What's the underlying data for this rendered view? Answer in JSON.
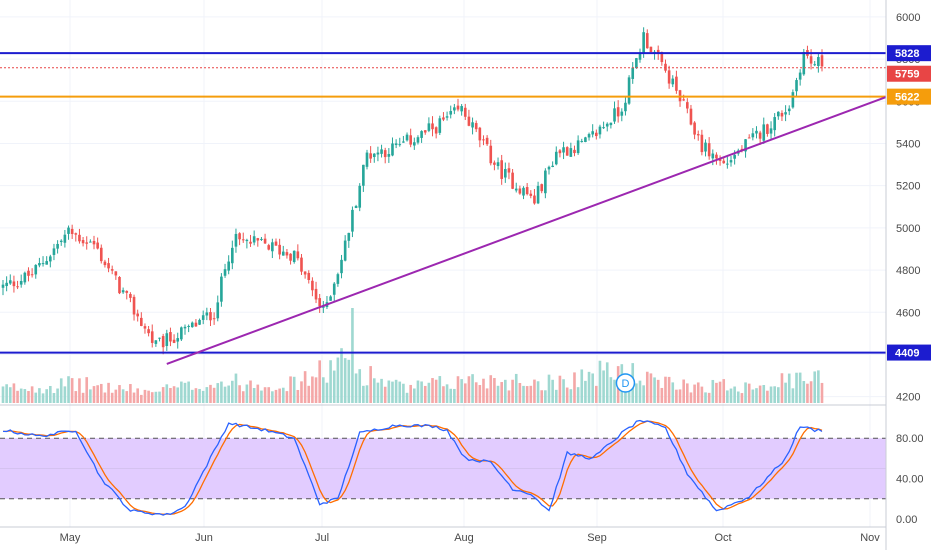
{
  "chart_data": {
    "type": "candlestick",
    "x_months": [
      "May",
      "Jun",
      "Jul",
      "Aug",
      "Sep",
      "Oct",
      "Nov"
    ],
    "price_axis": {
      "ticks": [
        4200,
        4400,
        4600,
        4800,
        5000,
        5200,
        5400,
        5600,
        5800,
        6000
      ],
      "range": [
        4170,
        6080
      ]
    },
    "oscillator_axis": {
      "ticks": [
        "0.00",
        "40.00",
        "80.00"
      ],
      "range": [
        -8,
        108
      ],
      "band": [
        20,
        80
      ]
    },
    "horizontal_levels": [
      {
        "label": "5828",
        "value": 5828,
        "color": "#1c1ccf"
      },
      {
        "label": "5759",
        "value": 5759,
        "color": "#e84545"
      },
      {
        "label": "5622",
        "value": 5622,
        "color": "#f59d0c"
      },
      {
        "label": "4409",
        "value": 4409,
        "color": "#1c1ccf"
      }
    ],
    "trendline": {
      "color": "#9c27b0",
      "from": {
        "bar": 45,
        "price": 4355
      },
      "to": {
        "bar": 230,
        "price": 5620
      }
    },
    "dividend_marker": {
      "label": "D",
      "bar": 171
    },
    "colors": {
      "up": "#26a69a",
      "down": "#ef5350",
      "up_volume": "#9fd8d1",
      "down_volume": "#f4a7a7",
      "k_line": "#2962ff",
      "d_line": "#ff6d00",
      "band_fill": "#e2ccff"
    },
    "price_waypoints": [
      [
        0,
        4720
      ],
      [
        8,
        4780
      ],
      [
        18,
        4980
      ],
      [
        25,
        4920
      ],
      [
        33,
        4690
      ],
      [
        42,
        4440
      ],
      [
        50,
        4510
      ],
      [
        58,
        4600
      ],
      [
        63,
        4940
      ],
      [
        72,
        4920
      ],
      [
        80,
        4870
      ],
      [
        88,
        4600
      ],
      [
        93,
        4850
      ],
      [
        100,
        5350
      ],
      [
        108,
        5380
      ],
      [
        118,
        5470
      ],
      [
        126,
        5560
      ],
      [
        136,
        5280
      ],
      [
        146,
        5130
      ],
      [
        152,
        5360
      ],
      [
        160,
        5400
      ],
      [
        170,
        5570
      ],
      [
        176,
        5910
      ],
      [
        184,
        5680
      ],
      [
        192,
        5390
      ],
      [
        198,
        5300
      ],
      [
        210,
        5480
      ],
      [
        216,
        5580
      ],
      [
        220,
        5830
      ],
      [
        222,
        5780
      ]
    ],
    "volume_waypoints": [
      [
        0,
        0.15
      ],
      [
        20,
        0.2
      ],
      [
        40,
        0.12
      ],
      [
        60,
        0.22
      ],
      [
        80,
        0.2
      ],
      [
        95,
        0.45
      ],
      [
        96,
        1.0
      ],
      [
        97,
        0.35
      ],
      [
        110,
        0.15
      ],
      [
        130,
        0.25
      ],
      [
        150,
        0.22
      ],
      [
        170,
        0.35
      ],
      [
        180,
        0.2
      ],
      [
        200,
        0.18
      ],
      [
        222,
        0.25
      ]
    ],
    "k_waypoints": [
      [
        0,
        88
      ],
      [
        10,
        82
      ],
      [
        20,
        88
      ],
      [
        27,
        40
      ],
      [
        35,
        8
      ],
      [
        45,
        4
      ],
      [
        50,
        12
      ],
      [
        62,
        95
      ],
      [
        72,
        88
      ],
      [
        80,
        80
      ],
      [
        87,
        15
      ],
      [
        92,
        20
      ],
      [
        98,
        85
      ],
      [
        108,
        93
      ],
      [
        118,
        92
      ],
      [
        122,
        88
      ],
      [
        127,
        60
      ],
      [
        134,
        56
      ],
      [
        140,
        30
      ],
      [
        145,
        25
      ],
      [
        150,
        8
      ],
      [
        155,
        65
      ],
      [
        162,
        60
      ],
      [
        170,
        85
      ],
      [
        175,
        98
      ],
      [
        182,
        90
      ],
      [
        188,
        45
      ],
      [
        196,
        8
      ],
      [
        205,
        22
      ],
      [
        215,
        60
      ],
      [
        219,
        92
      ],
      [
        223,
        88
      ]
    ]
  }
}
